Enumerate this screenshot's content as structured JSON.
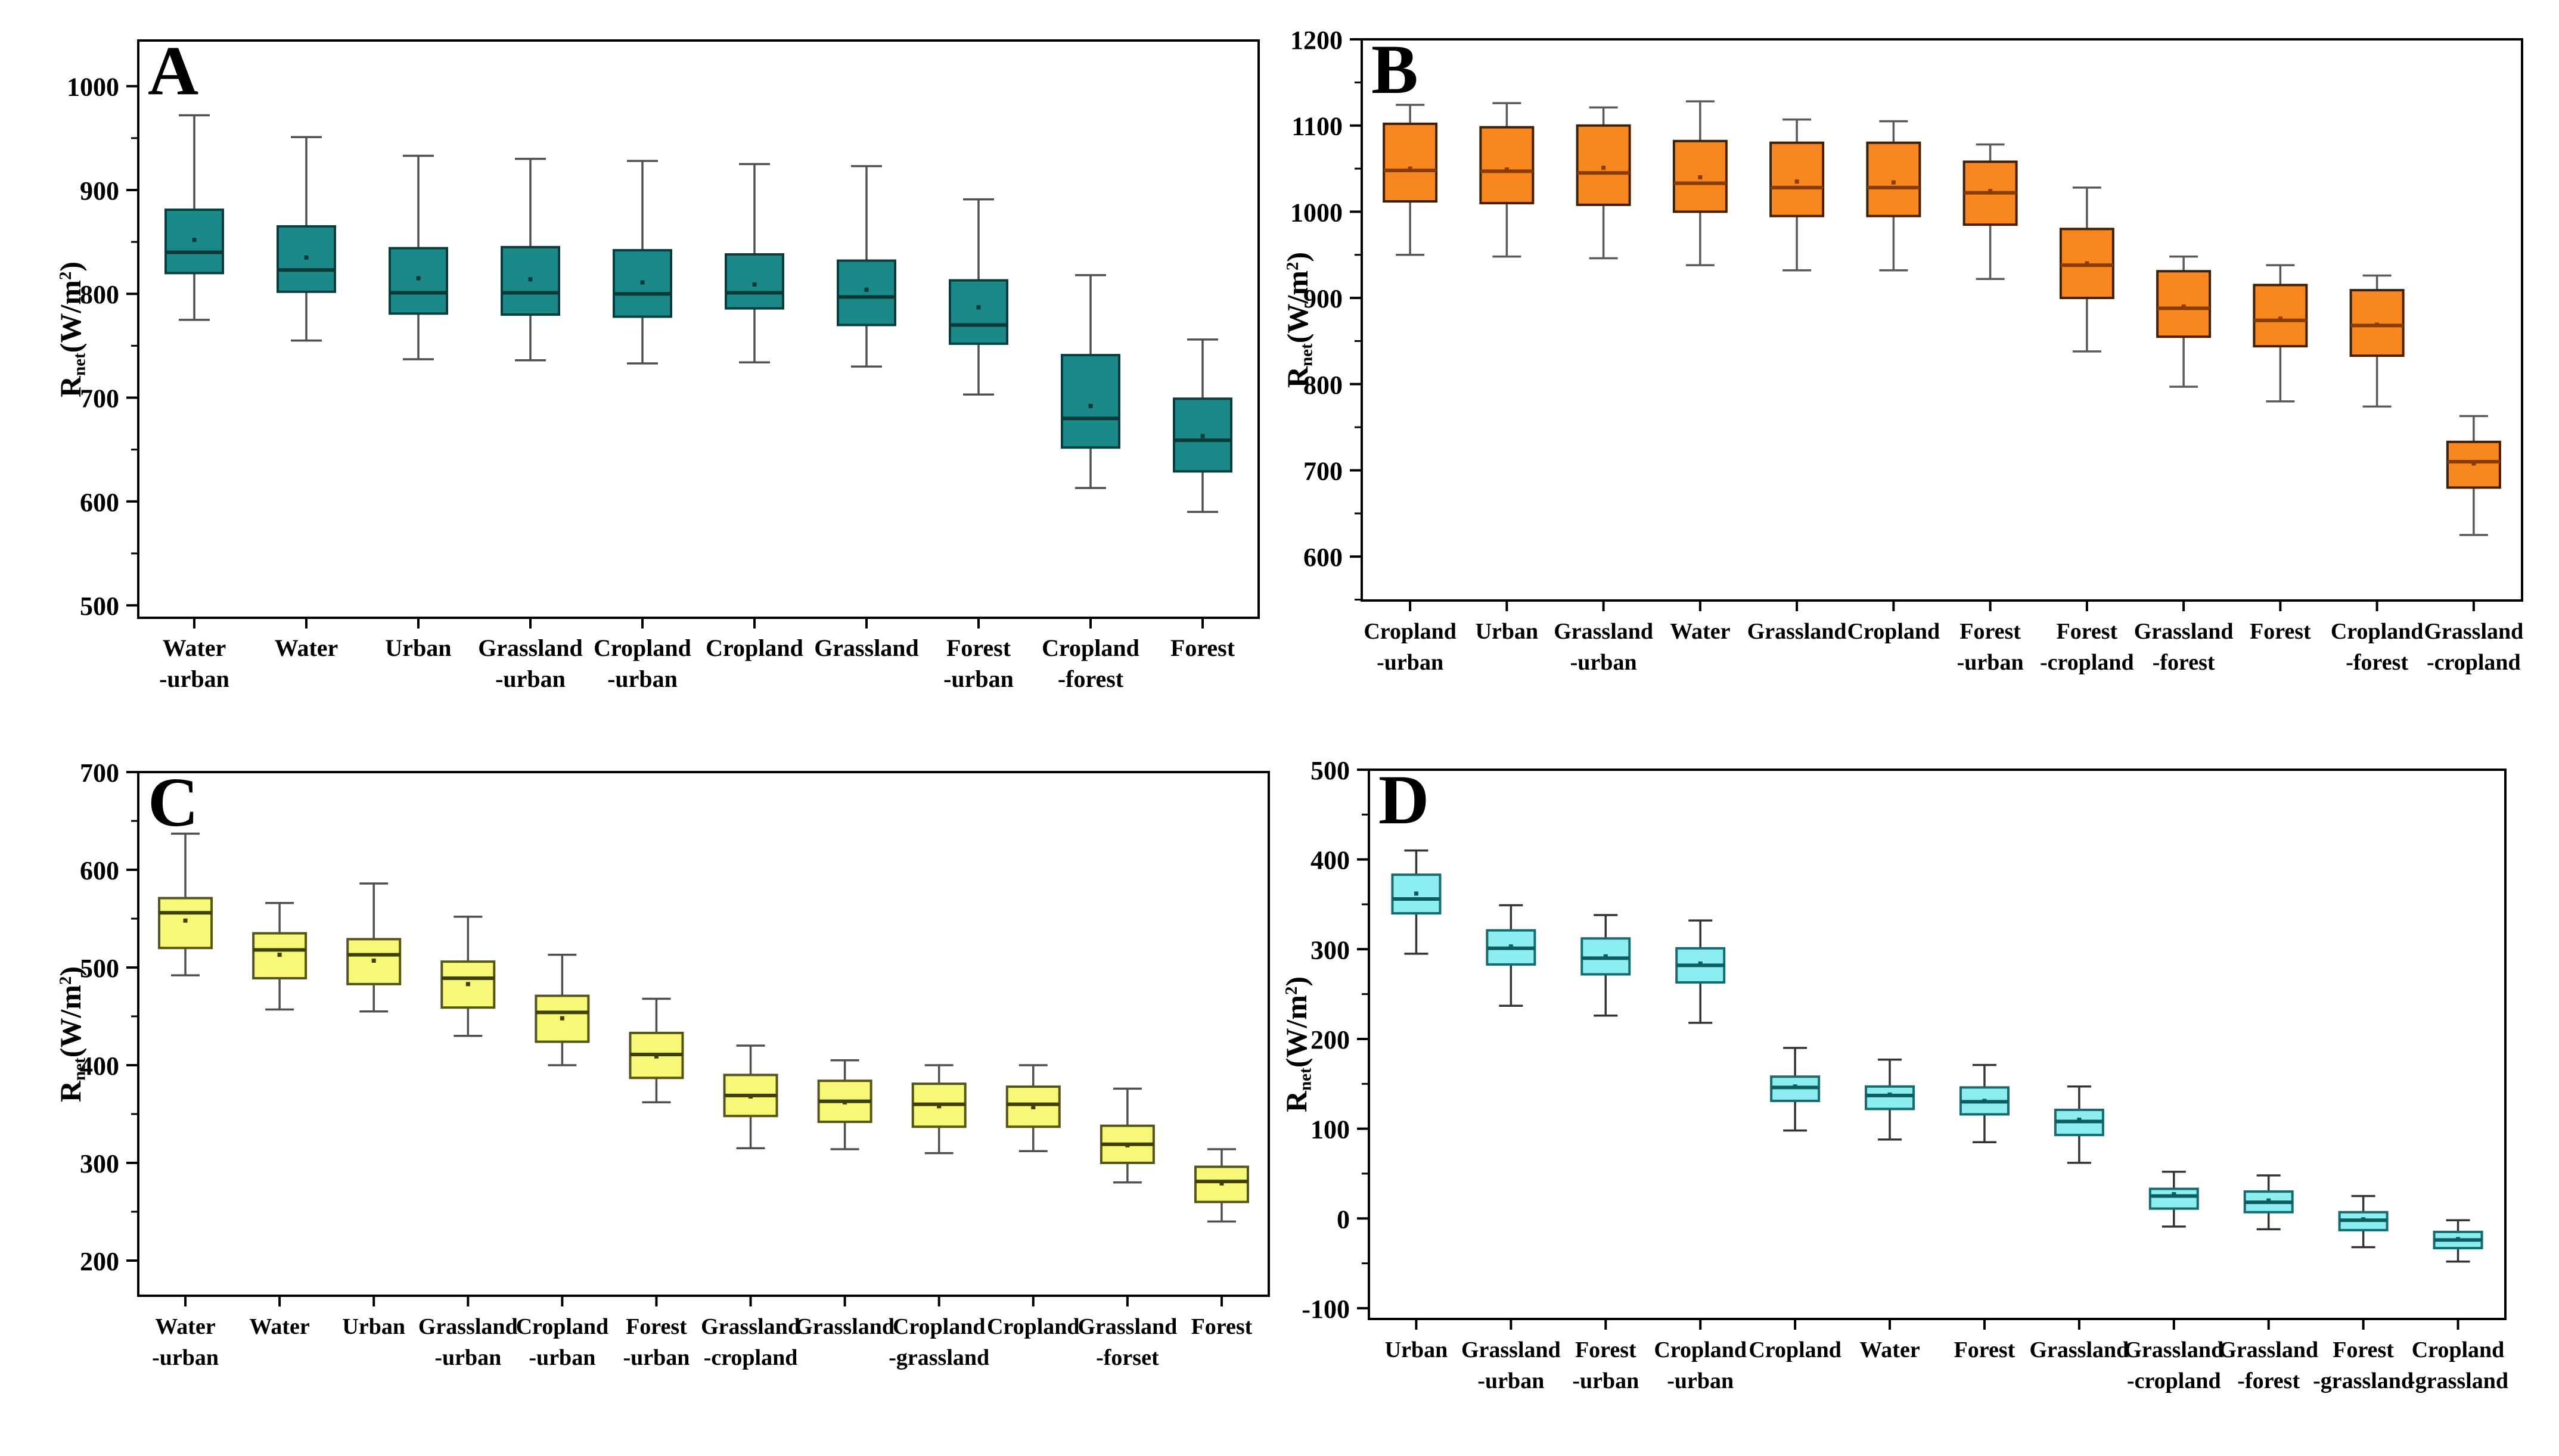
{
  "ylabel_parts": {
    "base": "R",
    "sub": "net",
    "rest": "(W/m",
    "sup": "2",
    "close": ")"
  },
  "chart_data": [
    {
      "type": "box",
      "panel_label": "A",
      "ylabel": "Rnet(W/m2)",
      "ylim": [
        488,
        1044
      ],
      "yticks": [
        500,
        600,
        700,
        800,
        900,
        1000
      ],
      "minor_step": 50,
      "legend_position": "none",
      "grid": false,
      "colors": {
        "fill": "#1c8989",
        "stroke": "#0a3d3d",
        "median": "#083838",
        "whisker": "#4f4f4f"
      },
      "categories": [
        [
          "Water",
          "-urban"
        ],
        [
          "Water"
        ],
        [
          "Urban"
        ],
        [
          "Grassland",
          "-urban"
        ],
        [
          "Cropland",
          "-urban"
        ],
        [
          "Cropland"
        ],
        [
          "Grassland"
        ],
        [
          "Forest",
          "-urban"
        ],
        [
          "Cropland",
          "-forest"
        ],
        [
          "Forest"
        ]
      ],
      "series": [
        {
          "name": "Water-urban",
          "low": 775,
          "q1": 820,
          "median": 840,
          "q3": 881,
          "high": 972,
          "mean": 852
        },
        {
          "name": "Water",
          "low": 755,
          "q1": 802,
          "median": 823,
          "q3": 865,
          "high": 951,
          "mean": 835
        },
        {
          "name": "Urban",
          "low": 737,
          "q1": 781,
          "median": 801,
          "q3": 844,
          "high": 933,
          "mean": 815
        },
        {
          "name": "Grassland-urban",
          "low": 736,
          "q1": 780,
          "median": 801,
          "q3": 845,
          "high": 930,
          "mean": 814
        },
        {
          "name": "Cropland-urban",
          "low": 733,
          "q1": 778,
          "median": 800,
          "q3": 842,
          "high": 928,
          "mean": 811
        },
        {
          "name": "Cropland",
          "low": 734,
          "q1": 786,
          "median": 801,
          "q3": 838,
          "high": 925,
          "mean": 809
        },
        {
          "name": "Grassland",
          "low": 730,
          "q1": 770,
          "median": 797,
          "q3": 832,
          "high": 923,
          "mean": 804
        },
        {
          "name": "Forest-urban",
          "low": 703,
          "q1": 752,
          "median": 770,
          "q3": 813,
          "high": 891,
          "mean": 787
        },
        {
          "name": "Cropland-forest",
          "low": 613,
          "q1": 652,
          "median": 680,
          "q3": 741,
          "high": 818,
          "mean": 692
        },
        {
          "name": "Forest",
          "low": 590,
          "q1": 629,
          "median": 659,
          "q3": 699,
          "high": 756,
          "mean": 663
        }
      ]
    },
    {
      "type": "box",
      "panel_label": "B",
      "ylabel": "Rnet(W/m2)",
      "ylim": [
        549,
        1200
      ],
      "yticks": [
        600,
        700,
        800,
        900,
        1000,
        1100,
        1200
      ],
      "minor_step": 50,
      "legend_position": "none",
      "grid": false,
      "colors": {
        "fill": "#f7871e",
        "stroke": "#3f2000",
        "median": "#8a3c00",
        "whisker": "#5a5a5a"
      },
      "categories": [
        [
          "Cropland",
          "-urban"
        ],
        [
          "Urban"
        ],
        [
          "Grassland",
          "-urban"
        ],
        [
          "Water"
        ],
        [
          "Grassland"
        ],
        [
          "Cropland"
        ],
        [
          "Forest",
          "-urban"
        ],
        [
          "Forest",
          "-cropland"
        ],
        [
          "Grassland",
          "-forest"
        ],
        [
          "Forest"
        ],
        [
          "Cropland",
          "-forest"
        ],
        [
          "Grassland",
          "-cropland"
        ]
      ],
      "series": [
        {
          "name": "Cropland-urban",
          "low": 950,
          "q1": 1012,
          "median": 1048,
          "q3": 1102,
          "high": 1124,
          "mean": 1050
        },
        {
          "name": "Urban",
          "low": 948,
          "q1": 1010,
          "median": 1047,
          "q3": 1098,
          "high": 1126,
          "mean": 1049
        },
        {
          "name": "Grassland-urban",
          "low": 946,
          "q1": 1008,
          "median": 1045,
          "q3": 1100,
          "high": 1121,
          "mean": 1051
        },
        {
          "name": "Water",
          "low": 938,
          "q1": 1000,
          "median": 1033,
          "q3": 1082,
          "high": 1128,
          "mean": 1040
        },
        {
          "name": "Grassland",
          "low": 932,
          "q1": 995,
          "median": 1028,
          "q3": 1080,
          "high": 1107,
          "mean": 1035
        },
        {
          "name": "Cropland",
          "low": 932,
          "q1": 995,
          "median": 1028,
          "q3": 1080,
          "high": 1105,
          "mean": 1034
        },
        {
          "name": "Forest-urban",
          "low": 922,
          "q1": 985,
          "median": 1022,
          "q3": 1058,
          "high": 1078,
          "mean": 1024
        },
        {
          "name": "Forest-cropland",
          "low": 838,
          "q1": 900,
          "median": 938,
          "q3": 980,
          "high": 1028,
          "mean": 940
        },
        {
          "name": "Grassland-forest",
          "low": 797,
          "q1": 855,
          "median": 888,
          "q3": 931,
          "high": 948,
          "mean": 890
        },
        {
          "name": "Forest",
          "low": 780,
          "q1": 844,
          "median": 874,
          "q3": 915,
          "high": 938,
          "mean": 876
        },
        {
          "name": "Cropland-forest",
          "low": 774,
          "q1": 833,
          "median": 868,
          "q3": 909,
          "high": 926,
          "mean": 869
        },
        {
          "name": "Grassland-cropland",
          "low": 625,
          "q1": 680,
          "median": 710,
          "q3": 733,
          "high": 763,
          "mean": 708
        }
      ]
    },
    {
      "type": "box",
      "panel_label": "C",
      "ylabel": "Rnet(W/m2)",
      "ylim": [
        164,
        700
      ],
      "yticks": [
        200,
        300,
        400,
        500,
        600,
        700
      ],
      "minor_step": 50,
      "legend_position": "none",
      "grid": false,
      "colors": {
        "fill": "#f8f878",
        "stroke": "#55551a",
        "median": "#3f3f00",
        "whisker": "#4f4f4f"
      },
      "categories": [
        [
          "Water",
          "-urban"
        ],
        [
          "Water"
        ],
        [
          "Urban"
        ],
        [
          "Grassland",
          "-urban"
        ],
        [
          "Cropland",
          "-urban"
        ],
        [
          "Forest",
          "-urban"
        ],
        [
          "Grassland",
          "-cropland"
        ],
        [
          "Grassland"
        ],
        [
          "Cropland",
          "-grassland"
        ],
        [
          "Cropland"
        ],
        [
          "Grassland",
          "-forset"
        ],
        [
          "Forest"
        ]
      ],
      "series": [
        {
          "name": "Water-urban",
          "low": 492,
          "q1": 520,
          "median": 556,
          "q3": 571,
          "high": 637,
          "mean": 548
        },
        {
          "name": "Water",
          "low": 457,
          "q1": 489,
          "median": 518,
          "q3": 535,
          "high": 566,
          "mean": 513
        },
        {
          "name": "Urban",
          "low": 455,
          "q1": 483,
          "median": 513,
          "q3": 529,
          "high": 586,
          "mean": 507
        },
        {
          "name": "Grassland-urban",
          "low": 430,
          "q1": 459,
          "median": 489,
          "q3": 506,
          "high": 552,
          "mean": 483
        },
        {
          "name": "Cropland-urban",
          "low": 400,
          "q1": 424,
          "median": 454,
          "q3": 471,
          "high": 513,
          "mean": 448
        },
        {
          "name": "Forest-urban",
          "low": 362,
          "q1": 387,
          "median": 411,
          "q3": 433,
          "high": 468,
          "mean": 409
        },
        {
          "name": "Grassland-cropland",
          "low": 315,
          "q1": 348,
          "median": 369,
          "q3": 390,
          "high": 420,
          "mean": 368
        },
        {
          "name": "Grassland",
          "low": 314,
          "q1": 342,
          "median": 363,
          "q3": 384,
          "high": 405,
          "mean": 362
        },
        {
          "name": "Cropland-grassland",
          "low": 310,
          "q1": 337,
          "median": 360,
          "q3": 381,
          "high": 400,
          "mean": 358
        },
        {
          "name": "Cropland",
          "low": 312,
          "q1": 337,
          "median": 360,
          "q3": 378,
          "high": 400,
          "mean": 357
        },
        {
          "name": "Grassland-forset",
          "low": 280,
          "q1": 300,
          "median": 319,
          "q3": 338,
          "high": 376,
          "mean": 318
        },
        {
          "name": "Forest",
          "low": 240,
          "q1": 260,
          "median": 281,
          "q3": 296,
          "high": 314,
          "mean": 279
        }
      ]
    },
    {
      "type": "box",
      "panel_label": "D",
      "ylabel": "Rnet(W/m2)",
      "ylim": [
        -112,
        500
      ],
      "yticks": [
        -100,
        0,
        100,
        200,
        300,
        400,
        500
      ],
      "minor_step": 50,
      "legend_position": "none",
      "grid": false,
      "colors": {
        "fill": "#8deef1",
        "stroke": "#176a6d",
        "median": "#0f5c5f",
        "whisker": "#333333"
      },
      "categories": [
        [
          "Urban"
        ],
        [
          "Grassland",
          "-urban"
        ],
        [
          "Forest",
          "-urban"
        ],
        [
          "Cropland",
          "-urban"
        ],
        [
          "Cropland"
        ],
        [
          "Water"
        ],
        [
          "Forest"
        ],
        [
          "Grassland"
        ],
        [
          "Grassland",
          "-cropland"
        ],
        [
          "Grassland",
          "-forest"
        ],
        [
          "Forest",
          "-grassland"
        ],
        [
          "Cropland",
          "-grassland"
        ]
      ],
      "series": [
        {
          "name": "Urban",
          "low": 295,
          "q1": 340,
          "median": 356,
          "q3": 383,
          "high": 410,
          "mean": 362
        },
        {
          "name": "Grassland-urban",
          "low": 237,
          "q1": 283,
          "median": 301,
          "q3": 321,
          "high": 349,
          "mean": 303
        },
        {
          "name": "Forest-urban",
          "low": 226,
          "q1": 272,
          "median": 290,
          "q3": 312,
          "high": 338,
          "mean": 292
        },
        {
          "name": "Cropland-urban",
          "low": 218,
          "q1": 263,
          "median": 282,
          "q3": 301,
          "high": 332,
          "mean": 284
        },
        {
          "name": "Cropland",
          "low": 98,
          "q1": 131,
          "median": 146,
          "q3": 158,
          "high": 190,
          "mean": 147
        },
        {
          "name": "Water",
          "low": 88,
          "q1": 122,
          "median": 137,
          "q3": 147,
          "high": 177,
          "mean": 138
        },
        {
          "name": "Forest",
          "low": 85,
          "q1": 116,
          "median": 130,
          "q3": 146,
          "high": 171,
          "mean": 131
        },
        {
          "name": "Grassland",
          "low": 62,
          "q1": 93,
          "median": 108,
          "q3": 121,
          "high": 147,
          "mean": 110
        },
        {
          "name": "Grassland-cropland",
          "low": -9,
          "q1": 11,
          "median": 25,
          "q3": 33,
          "high": 52,
          "mean": 27
        },
        {
          "name": "Grassland-forest",
          "low": -12,
          "q1": 7,
          "median": 18,
          "q3": 30,
          "high": 48,
          "mean": 20
        },
        {
          "name": "Forest-grassland",
          "low": -32,
          "q1": -13,
          "median": -2,
          "q3": 7,
          "high": 25,
          "mean": -1
        },
        {
          "name": "Cropland-grassland",
          "low": -48,
          "q1": -33,
          "median": -24,
          "q3": -15,
          "high": -2,
          "mean": -23
        }
      ]
    }
  ]
}
